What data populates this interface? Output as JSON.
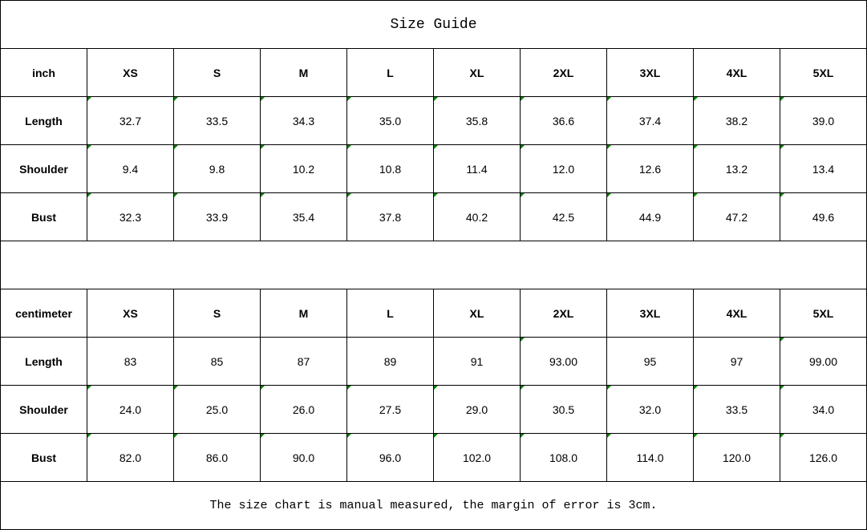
{
  "title": "Size Guide",
  "sizes": [
    "XS",
    "S",
    "M",
    "L",
    "XL",
    "2XL",
    "3XL",
    "4XL",
    "5XL"
  ],
  "tables": [
    {
      "unit": "inch",
      "rows": [
        {
          "label": "Length",
          "values": [
            "32.7",
            "33.5",
            "34.3",
            "35.0",
            "35.8",
            "36.6",
            "37.4",
            "38.2",
            "39.0"
          ],
          "number_stored_as_text": [
            true,
            true,
            true,
            true,
            true,
            true,
            true,
            true,
            true
          ]
        },
        {
          "label": "Shoulder",
          "values": [
            "9.4",
            "9.8",
            "10.2",
            "10.8",
            "11.4",
            "12.0",
            "12.6",
            "13.2",
            "13.4"
          ],
          "number_stored_as_text": [
            true,
            true,
            true,
            true,
            true,
            true,
            true,
            true,
            true
          ]
        },
        {
          "label": "Bust",
          "values": [
            "32.3",
            "33.9",
            "35.4",
            "37.8",
            "40.2",
            "42.5",
            "44.9",
            "47.2",
            "49.6"
          ],
          "number_stored_as_text": [
            true,
            true,
            true,
            true,
            true,
            true,
            true,
            true,
            true
          ]
        }
      ]
    },
    {
      "unit": "centimeter",
      "rows": [
        {
          "label": "Length",
          "values": [
            "83",
            "85",
            "87",
            "89",
            "91",
            "93.00",
            "95",
            "97",
            "99.00"
          ],
          "number_stored_as_text": [
            false,
            false,
            false,
            false,
            false,
            true,
            false,
            false,
            true
          ]
        },
        {
          "label": "Shoulder",
          "values": [
            "24.0",
            "25.0",
            "26.0",
            "27.5",
            "29.0",
            "30.5",
            "32.0",
            "33.5",
            "34.0"
          ],
          "number_stored_as_text": [
            true,
            true,
            true,
            true,
            true,
            true,
            true,
            true,
            true
          ]
        },
        {
          "label": "Bust",
          "values": [
            "82.0",
            "86.0",
            "90.0",
            "96.0",
            "102.0",
            "108.0",
            "114.0",
            "120.0",
            "126.0"
          ],
          "number_stored_as_text": [
            true,
            true,
            true,
            true,
            true,
            true,
            true,
            true,
            true
          ]
        }
      ]
    }
  ],
  "note": "The size chart is manual measured, the margin of error is 3cm.",
  "colors": {
    "error_indicator": "#008000",
    "grid": "#000000"
  }
}
